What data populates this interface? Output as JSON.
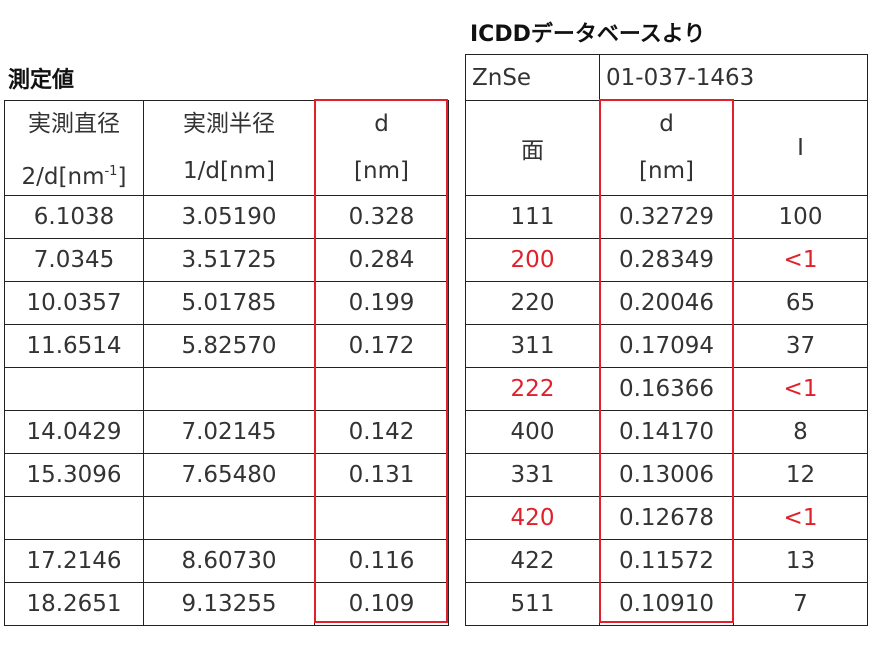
{
  "left": {
    "title": "測定値",
    "headers": [
      {
        "line1": "実測直径",
        "line2_pre": "2/d[nm",
        "line2_sup": "-1",
        "line2_post": "]"
      },
      {
        "line1": "実測半径",
        "line2": "1/d[nm]"
      },
      {
        "line1": "d",
        "line2": "[nm]"
      }
    ],
    "rows": [
      [
        "6.1038",
        "3.05190",
        "0.328"
      ],
      [
        "7.0345",
        "3.51725",
        "0.284"
      ],
      [
        "10.0357",
        "5.01785",
        "0.199"
      ],
      [
        "11.6514",
        "5.82570",
        "0.172"
      ],
      [
        "",
        "",
        ""
      ],
      [
        "14.0429",
        "7.02145",
        "0.142"
      ],
      [
        "15.3096",
        "7.65480",
        "0.131"
      ],
      [
        "",
        "",
        ""
      ],
      [
        "17.2146",
        "8.60730",
        "0.116"
      ],
      [
        "18.2651",
        "9.13255",
        "0.109"
      ]
    ]
  },
  "right": {
    "title": "ICDDデータベースより",
    "material": "ZnSe",
    "card": "01-037-1463",
    "headers": {
      "face": "面",
      "d_line1": "d",
      "d_line2": "[nm]",
      "i": "I"
    },
    "rows": [
      {
        "face": "111",
        "d": "0.32729",
        "i": "100",
        "forbidden": false
      },
      {
        "face": "200",
        "d": "0.28349",
        "i": "<1",
        "forbidden": true
      },
      {
        "face": "220",
        "d": "0.20046",
        "i": "65",
        "forbidden": false
      },
      {
        "face": "311",
        "d": "0.17094",
        "i": "37",
        "forbidden": false
      },
      {
        "face": "222",
        "d": "0.16366",
        "i": "<1",
        "forbidden": true
      },
      {
        "face": "400",
        "d": "0.14170",
        "i": "8",
        "forbidden": false
      },
      {
        "face": "331",
        "d": "0.13006",
        "i": "12",
        "forbidden": false
      },
      {
        "face": "420",
        "d": "0.12678",
        "i": "<1",
        "forbidden": true
      },
      {
        "face": "422",
        "d": "0.11572",
        "i": "13",
        "forbidden": false
      },
      {
        "face": "511",
        "d": "0.10910",
        "i": "7",
        "forbidden": false
      }
    ]
  },
  "colors": {
    "highlight": "#e0202a",
    "text": "#333333",
    "border": "#222222"
  }
}
